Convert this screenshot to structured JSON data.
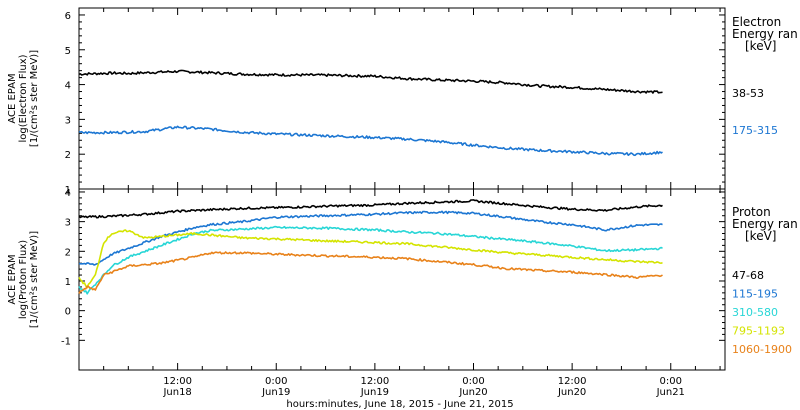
{
  "chart_data": [
    {
      "type": "line",
      "panel": "electron",
      "ylabel_lines": [
        "ACE EPAM",
        "log(Electron Flux)",
        "[1/(cm²s ster MeV)]"
      ],
      "ylim": [
        1,
        6.2
      ],
      "yticks": [
        1,
        2,
        3,
        4,
        5,
        6
      ],
      "legend_title": [
        "Electron",
        "Energy ran",
        "[keV]"
      ],
      "grid": false,
      "series": [
        {
          "name": "38-53",
          "color": "#000000",
          "x": [
            0,
            4,
            6,
            12,
            16,
            20,
            24,
            30,
            36,
            40,
            44,
            48,
            52,
            56,
            60,
            64,
            68,
            71
          ],
          "values": [
            4.3,
            4.33,
            4.32,
            4.38,
            4.34,
            4.3,
            4.28,
            4.27,
            4.24,
            4.17,
            4.13,
            4.1,
            4.05,
            3.96,
            3.92,
            3.86,
            3.8,
            3.78
          ]
        },
        {
          "name": "175-315",
          "color": "#1c76d2",
          "x": [
            0,
            4,
            8,
            12,
            16,
            20,
            24,
            30,
            36,
            40,
            44,
            48,
            52,
            56,
            60,
            64,
            68,
            71
          ],
          "values": [
            2.62,
            2.62,
            2.65,
            2.78,
            2.72,
            2.63,
            2.58,
            2.53,
            2.48,
            2.43,
            2.36,
            2.26,
            2.17,
            2.11,
            2.07,
            2.02,
            2.0,
            2.06
          ]
        }
      ]
    },
    {
      "type": "line",
      "panel": "proton",
      "ylabel_lines": [
        "ACE EPAM",
        "log(Proton Flux)",
        "[1/(cm²s ster MeV)]"
      ],
      "ylim": [
        -2,
        4.1
      ],
      "yticks": [
        -1,
        0,
        1,
        2,
        3,
        4
      ],
      "legend_title": [
        "Proton",
        "Energy ran",
        "[keV]"
      ],
      "grid": false,
      "series": [
        {
          "name": "47-68",
          "color": "#000000",
          "x": [
            0,
            4,
            8,
            12,
            16,
            20,
            24,
            30,
            36,
            40,
            44,
            48,
            52,
            56,
            60,
            64,
            68,
            71
          ],
          "values": [
            3.15,
            3.18,
            3.25,
            3.35,
            3.4,
            3.45,
            3.47,
            3.52,
            3.56,
            3.62,
            3.66,
            3.7,
            3.6,
            3.5,
            3.42,
            3.38,
            3.5,
            3.55
          ]
        },
        {
          "name": "115-195",
          "color": "#1c76d2",
          "x": [
            0,
            2,
            4,
            6,
            8,
            10,
            12,
            14,
            16,
            20,
            24,
            30,
            36,
            40,
            44,
            48,
            52,
            56,
            60,
            64,
            68,
            71
          ],
          "values": [
            1.6,
            1.55,
            1.9,
            2.1,
            2.3,
            2.5,
            2.65,
            2.8,
            2.9,
            3.0,
            3.15,
            3.2,
            3.25,
            3.3,
            3.32,
            3.28,
            3.15,
            3.0,
            2.9,
            2.72,
            2.88,
            2.9
          ]
        },
        {
          "name": "310-580",
          "color": "#28d6d6",
          "x": [
            0,
            1,
            2,
            4,
            6,
            8,
            10,
            12,
            14,
            16,
            20,
            24,
            30,
            36,
            40,
            44,
            48,
            52,
            56,
            60,
            64,
            68,
            71
          ],
          "values": [
            0.8,
            0.6,
            0.9,
            1.5,
            1.8,
            2.0,
            2.2,
            2.4,
            2.6,
            2.7,
            2.75,
            2.8,
            2.78,
            2.72,
            2.65,
            2.6,
            2.5,
            2.4,
            2.3,
            2.18,
            2.02,
            2.05,
            2.1
          ]
        },
        {
          "name": "795-1193",
          "color": "#d4e400",
          "x": [
            0,
            1,
            2,
            3,
            4,
            6,
            8,
            10,
            12,
            14,
            16,
            20,
            24,
            30,
            36,
            40,
            44,
            48,
            52,
            56,
            60,
            64,
            68,
            71
          ],
          "values": [
            1.1,
            0.8,
            1.2,
            2.3,
            2.6,
            2.7,
            2.45,
            2.5,
            2.55,
            2.6,
            2.55,
            2.45,
            2.42,
            2.35,
            2.3,
            2.25,
            2.15,
            2.05,
            1.95,
            1.88,
            1.8,
            1.72,
            1.65,
            1.62
          ]
        },
        {
          "name": "1060-1900",
          "color": "#e8821a",
          "x": [
            0,
            1,
            2,
            3,
            4,
            6,
            8,
            10,
            12,
            14,
            16,
            20,
            24,
            30,
            36,
            40,
            44,
            48,
            52,
            56,
            60,
            64,
            68,
            71
          ],
          "values": [
            0.6,
            0.8,
            0.7,
            1.2,
            1.3,
            1.5,
            1.55,
            1.6,
            1.7,
            1.8,
            1.95,
            1.95,
            1.9,
            1.85,
            1.8,
            1.75,
            1.65,
            1.55,
            1.42,
            1.35,
            1.3,
            1.22,
            1.12,
            1.2
          ]
        }
      ]
    }
  ],
  "x_axis": {
    "range_hours": [
      0,
      78.6
    ],
    "major_ticks": [
      {
        "x": 12,
        "time": "12:00",
        "date": "Jun18"
      },
      {
        "x": 24,
        "time": "0:00",
        "date": "Jun19"
      },
      {
        "x": 36,
        "time": "12:00",
        "date": "Jun19"
      },
      {
        "x": 48,
        "time": "0:00",
        "date": "Jun20"
      },
      {
        "x": 60,
        "time": "12:00",
        "date": "Jun20"
      },
      {
        "x": 72,
        "time": "0:00",
        "date": "Jun21"
      }
    ],
    "minor_tick_step_hours": 3,
    "label": "hours:minutes, June 18, 2015 - June 21, 2015"
  }
}
